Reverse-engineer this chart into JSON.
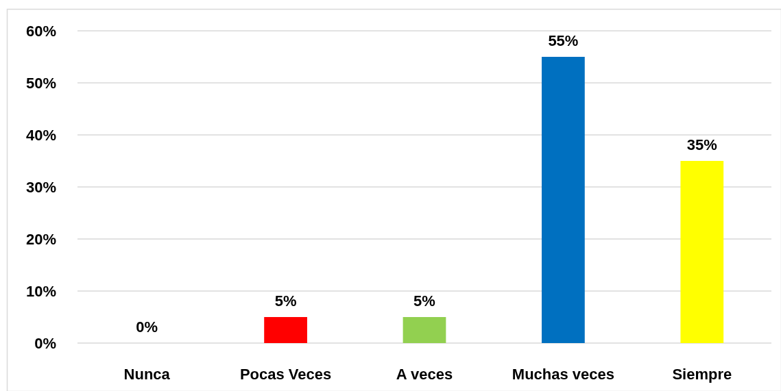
{
  "chart_data": {
    "type": "bar",
    "categories": [
      "Nunca",
      "Pocas Veces",
      "A veces",
      "Muchas veces",
      "Siempre"
    ],
    "values": [
      0,
      5,
      5,
      55,
      35
    ],
    "colors": [
      "#ff0000",
      "#ff0000",
      "#92d050",
      "#0070c0",
      "#ffff00"
    ],
    "value_labels": [
      "0%",
      "5%",
      "5%",
      "55%",
      "35%"
    ],
    "ylim": [
      0,
      60
    ],
    "yticks": [
      {
        "value": 0,
        "label": "0%"
      },
      {
        "value": 10,
        "label": "10%"
      },
      {
        "value": 20,
        "label": "20%"
      },
      {
        "value": 30,
        "label": "30%"
      },
      {
        "value": 40,
        "label": "40%"
      },
      {
        "value": 50,
        "label": "50%"
      },
      {
        "value": 60,
        "label": "60%"
      }
    ],
    "grid": "y"
  }
}
